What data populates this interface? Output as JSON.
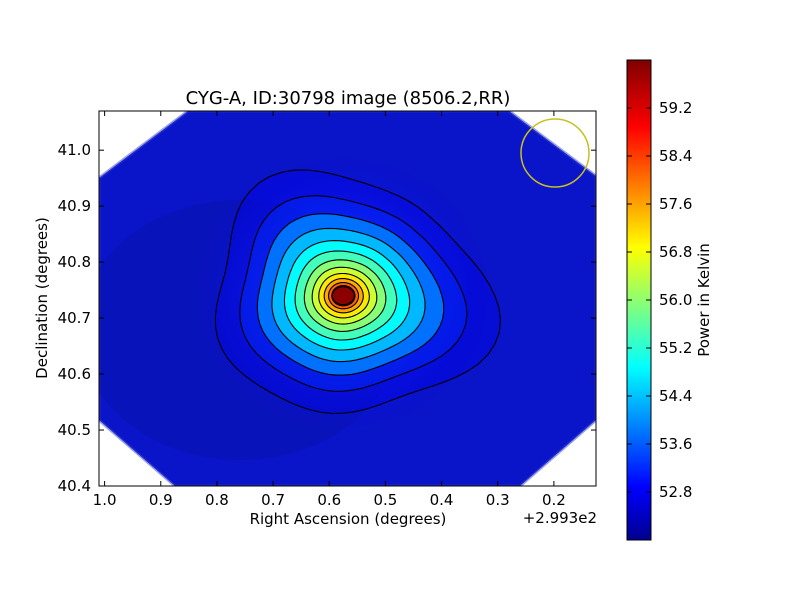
{
  "chart_data": {
    "type": "heatmap",
    "title": "CYG-A, ID:30798 image (8506.2,RR)",
    "xlabel": "Right Ascension (degrees)",
    "ylabel": "Declination (degrees)",
    "x_offset_label": "+2.993e2",
    "x_ticks": [
      "1.0",
      "0.9",
      "0.8",
      "0.7",
      "0.6",
      "0.5",
      "0.4",
      "0.3",
      "0.2"
    ],
    "y_ticks": [
      "40.4",
      "40.5",
      "40.6",
      "40.7",
      "40.8",
      "40.9",
      "41.0"
    ],
    "xlim": [
      1.01,
      0.125
    ],
    "ylim": [
      40.4,
      41.07
    ],
    "colorbar": {
      "label": "Power in Kelvin",
      "ticks": [
        "52.8",
        "53.6",
        "54.4",
        "55.2",
        "56.0",
        "56.8",
        "57.6",
        "58.4",
        "59.2"
      ],
      "range": [
        52.0,
        60.0
      ],
      "colormap": "jet"
    },
    "peak": {
      "x": 0.575,
      "y": 40.74,
      "value": 59.9
    },
    "contours": {
      "count": 14,
      "color": "#000000"
    },
    "beam_marker": {
      "x": 0.2,
      "y": 40.995,
      "color": "#c8c020"
    },
    "background_value": 52.3,
    "grid": false
  }
}
